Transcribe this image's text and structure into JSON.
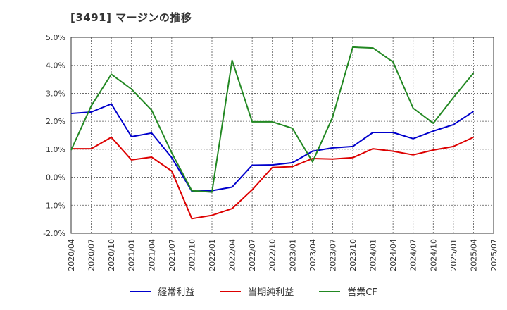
{
  "chart_data": {
    "type": "line",
    "title": "[3491]  マージンの推移",
    "x": [
      "2020/04",
      "2020/07",
      "2020/10",
      "2021/01",
      "2021/04",
      "2021/07",
      "2021/10",
      "2022/01",
      "2022/04",
      "2022/07",
      "2022/10",
      "2023/01",
      "2023/04",
      "2023/07",
      "2023/10",
      "2024/01",
      "2024/04",
      "2024/07",
      "2024/10",
      "2025/01",
      "2025/04",
      "2025/07"
    ],
    "y_ticks": [
      "5.0%",
      "4.0%",
      "3.0%",
      "2.0%",
      "1.0%",
      "0.0%",
      "-1.0%",
      "-2.0%"
    ],
    "ylim": [
      -2.0,
      5.0
    ],
    "grid": true,
    "legend_position": "bottom",
    "series": [
      {
        "name": "経常利益",
        "color": "#0000cc",
        "values": [
          2.28,
          2.33,
          2.62,
          1.45,
          1.58,
          0.7,
          -0.5,
          -0.48,
          -0.35,
          0.43,
          0.44,
          0.52,
          0.93,
          1.05,
          1.1,
          1.6,
          1.6,
          1.38,
          1.65,
          1.88,
          2.35,
          null
        ]
      },
      {
        "name": "当期純利益",
        "color": "#dd0000",
        "values": [
          1.02,
          1.02,
          1.43,
          0.62,
          0.72,
          0.22,
          -1.48,
          -1.36,
          -1.12,
          -0.45,
          0.35,
          0.38,
          0.67,
          0.65,
          0.7,
          1.02,
          0.93,
          0.8,
          0.97,
          1.1,
          1.43,
          null
        ]
      },
      {
        "name": "営業CF",
        "color": "#228822",
        "values": [
          0.97,
          2.55,
          3.68,
          3.15,
          2.4,
          0.87,
          -0.48,
          -0.53,
          4.18,
          1.98,
          1.98,
          1.75,
          0.55,
          2.15,
          4.65,
          4.62,
          4.12,
          2.47,
          1.93,
          2.85,
          3.72,
          null
        ]
      }
    ]
  }
}
